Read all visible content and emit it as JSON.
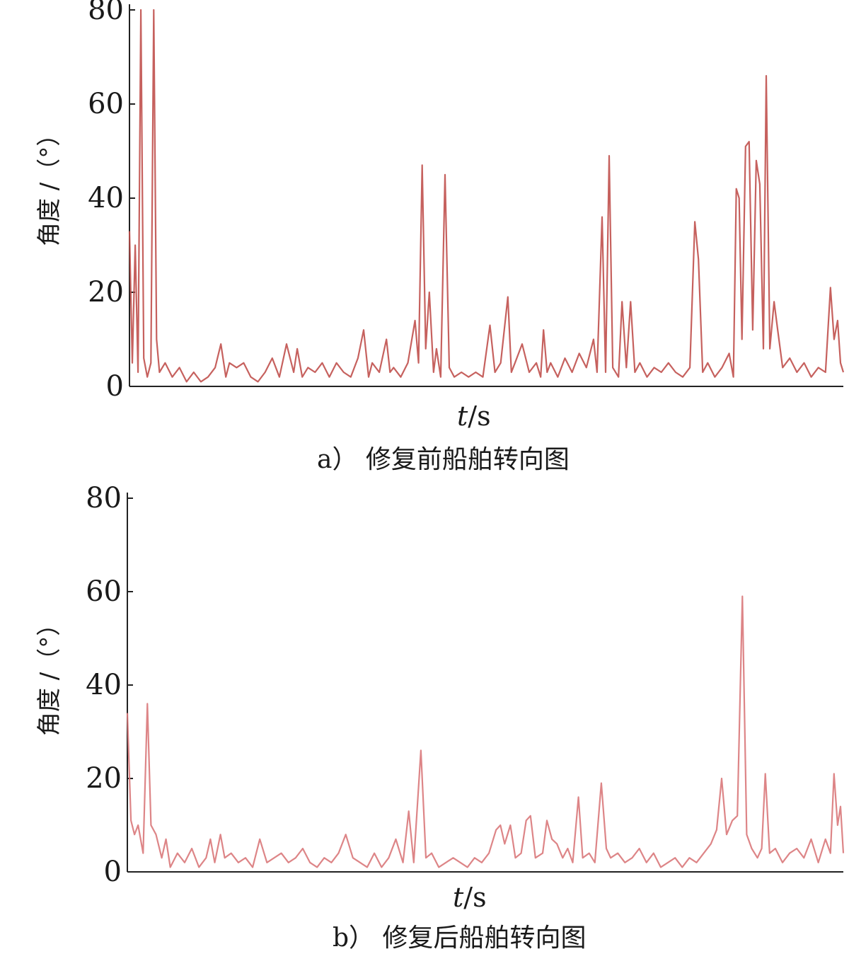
{
  "chart_data": [
    {
      "type": "line",
      "panel": "a",
      "caption_tag": "a）",
      "caption_text": "修复前船舶转向图",
      "ylabel": "角度 /（°）",
      "xlabel_var": "t",
      "xlabel_unit": "/s",
      "yticks": [
        "0",
        "20",
        "40",
        "60",
        "80"
      ],
      "ylim": [
        0,
        80
      ],
      "xlim": [
        0,
        100
      ],
      "grid": false,
      "color": "#c0504d",
      "series": [
        {
          "points": [
            [
              0,
              33
            ],
            [
              0.4,
              5
            ],
            [
              0.8,
              30
            ],
            [
              1.2,
              3
            ],
            [
              1.6,
              80
            ],
            [
              2,
              6
            ],
            [
              2.5,
              2
            ],
            [
              3,
              5
            ],
            [
              3.4,
              80
            ],
            [
              3.8,
              10
            ],
            [
              4.2,
              3
            ],
            [
              5,
              5
            ],
            [
              6,
              2
            ],
            [
              7,
              4
            ],
            [
              8,
              1
            ],
            [
              9,
              3
            ],
            [
              10,
              1
            ],
            [
              11,
              2
            ],
            [
              12,
              4
            ],
            [
              12.8,
              9
            ],
            [
              13.5,
              2
            ],
            [
              14,
              5
            ],
            [
              15,
              4
            ],
            [
              16,
              5
            ],
            [
              17,
              2
            ],
            [
              18,
              1
            ],
            [
              19,
              3
            ],
            [
              20,
              6
            ],
            [
              21,
              2
            ],
            [
              22,
              9
            ],
            [
              23,
              3
            ],
            [
              23.5,
              8
            ],
            [
              24.2,
              2
            ],
            [
              25,
              4
            ],
            [
              26,
              3
            ],
            [
              27,
              5
            ],
            [
              28,
              2
            ],
            [
              29,
              5
            ],
            [
              30,
              3
            ],
            [
              31,
              2
            ],
            [
              32,
              6
            ],
            [
              32.8,
              12
            ],
            [
              33.5,
              2
            ],
            [
              34,
              5
            ],
            [
              35,
              3
            ],
            [
              36,
              10
            ],
            [
              36.5,
              3
            ],
            [
              37,
              4
            ],
            [
              38,
              2
            ],
            [
              39,
              5
            ],
            [
              40,
              14
            ],
            [
              40.5,
              5
            ],
            [
              41,
              47
            ],
            [
              41.5,
              8
            ],
            [
              42,
              20
            ],
            [
              42.6,
              3
            ],
            [
              43,
              8
            ],
            [
              43.6,
              2
            ],
            [
              44.2,
              45
            ],
            [
              44.8,
              4
            ],
            [
              45.5,
              2
            ],
            [
              46.5,
              3
            ],
            [
              47.5,
              2
            ],
            [
              48.5,
              3
            ],
            [
              49.5,
              2
            ],
            [
              50.5,
              13
            ],
            [
              51.2,
              3
            ],
            [
              52,
              5
            ],
            [
              53,
              19
            ],
            [
              53.5,
              3
            ],
            [
              54,
              5
            ],
            [
              55,
              9
            ],
            [
              56,
              3
            ],
            [
              57,
              5
            ],
            [
              57.6,
              2
            ],
            [
              58,
              12
            ],
            [
              58.5,
              3
            ],
            [
              59,
              5
            ],
            [
              60,
              2
            ],
            [
              61,
              6
            ],
            [
              62,
              3
            ],
            [
              63,
              7
            ],
            [
              64,
              4
            ],
            [
              65,
              10
            ],
            [
              65.5,
              3
            ],
            [
              66.2,
              36
            ],
            [
              66.7,
              3
            ],
            [
              67.2,
              49
            ],
            [
              67.7,
              4
            ],
            [
              68.5,
              2
            ],
            [
              69,
              18
            ],
            [
              69.6,
              4
            ],
            [
              70.2,
              18
            ],
            [
              70.8,
              3
            ],
            [
              71.5,
              5
            ],
            [
              72.5,
              2
            ],
            [
              73.5,
              4
            ],
            [
              74.5,
              3
            ],
            [
              75.5,
              5
            ],
            [
              76.5,
              3
            ],
            [
              77.5,
              2
            ],
            [
              78.5,
              4
            ],
            [
              79.2,
              35
            ],
            [
              79.7,
              27
            ],
            [
              80.3,
              3
            ],
            [
              81,
              5
            ],
            [
              82,
              2
            ],
            [
              83,
              4
            ],
            [
              84,
              7
            ],
            [
              84.6,
              2
            ],
            [
              85,
              42
            ],
            [
              85.4,
              40
            ],
            [
              85.8,
              10
            ],
            [
              86.3,
              51
            ],
            [
              86.8,
              52
            ],
            [
              87.3,
              12
            ],
            [
              87.8,
              48
            ],
            [
              88.3,
              43
            ],
            [
              88.8,
              8
            ],
            [
              89.2,
              66
            ],
            [
              89.7,
              8
            ],
            [
              90.3,
              18
            ],
            [
              90.8,
              12
            ],
            [
              91.5,
              4
            ],
            [
              92.5,
              6
            ],
            [
              93.5,
              3
            ],
            [
              94.5,
              5
            ],
            [
              95.5,
              2
            ],
            [
              96.5,
              4
            ],
            [
              97.5,
              3
            ],
            [
              98.2,
              21
            ],
            [
              98.7,
              10
            ],
            [
              99.2,
              14
            ],
            [
              99.6,
              5
            ],
            [
              100,
              3
            ]
          ]
        }
      ]
    },
    {
      "type": "line",
      "panel": "b",
      "caption_tag": "b）",
      "caption_text": "修复后船舶转向图",
      "ylabel": "角度 /（°）",
      "xlabel_var": "t",
      "xlabel_unit": "/s",
      "yticks": [
        "0",
        "20",
        "40",
        "60",
        "80"
      ],
      "ylim": [
        0,
        80
      ],
      "xlim": [
        0,
        100
      ],
      "grid": false,
      "color": "#d9787a",
      "series": [
        {
          "points": [
            [
              0,
              34
            ],
            [
              0.5,
              11
            ],
            [
              1,
              8
            ],
            [
              1.5,
              10
            ],
            [
              2.2,
              4
            ],
            [
              2.8,
              36
            ],
            [
              3.3,
              10
            ],
            [
              4,
              8
            ],
            [
              4.8,
              3
            ],
            [
              5.4,
              7
            ],
            [
              6,
              1
            ],
            [
              7,
              4
            ],
            [
              8,
              2
            ],
            [
              9,
              5
            ],
            [
              10,
              1
            ],
            [
              11,
              3
            ],
            [
              11.6,
              7
            ],
            [
              12.2,
              2
            ],
            [
              13,
              8
            ],
            [
              13.6,
              3
            ],
            [
              14.5,
              4
            ],
            [
              15.5,
              2
            ],
            [
              16.5,
              3
            ],
            [
              17.5,
              1
            ],
            [
              18.5,
              7
            ],
            [
              19.5,
              2
            ],
            [
              20.5,
              3
            ],
            [
              21.5,
              4
            ],
            [
              22.5,
              2
            ],
            [
              23.5,
              3
            ],
            [
              24.5,
              5
            ],
            [
              25.5,
              2
            ],
            [
              26.5,
              1
            ],
            [
              27.5,
              3
            ],
            [
              28.5,
              2
            ],
            [
              29.5,
              4
            ],
            [
              30.5,
              8
            ],
            [
              31.5,
              3
            ],
            [
              32.5,
              2
            ],
            [
              33.5,
              1
            ],
            [
              34.5,
              4
            ],
            [
              35.5,
              1
            ],
            [
              36.5,
              3
            ],
            [
              37.5,
              7
            ],
            [
              38.5,
              2
            ],
            [
              39.3,
              13
            ],
            [
              40,
              2
            ],
            [
              41,
              26
            ],
            [
              41.7,
              3
            ],
            [
              42.5,
              4
            ],
            [
              43.5,
              1
            ],
            [
              44.5,
              2
            ],
            [
              45.5,
              3
            ],
            [
              46.5,
              2
            ],
            [
              47.5,
              1
            ],
            [
              48.5,
              3
            ],
            [
              49.5,
              2
            ],
            [
              50.5,
              4
            ],
            [
              51.5,
              9
            ],
            [
              52.1,
              10
            ],
            [
              52.7,
              6
            ],
            [
              53.5,
              10
            ],
            [
              54.2,
              3
            ],
            [
              55,
              4
            ],
            [
              55.7,
              11
            ],
            [
              56.3,
              12
            ],
            [
              57,
              3
            ],
            [
              58,
              4
            ],
            [
              58.6,
              11
            ],
            [
              59.3,
              7
            ],
            [
              60,
              6
            ],
            [
              60.8,
              3
            ],
            [
              61.5,
              5
            ],
            [
              62.2,
              2
            ],
            [
              63,
              16
            ],
            [
              63.6,
              3
            ],
            [
              64.5,
              4
            ],
            [
              65.3,
              2
            ],
            [
              66.2,
              19
            ],
            [
              66.9,
              5
            ],
            [
              67.5,
              3
            ],
            [
              68.5,
              4
            ],
            [
              69.5,
              2
            ],
            [
              70.5,
              3
            ],
            [
              71.5,
              5
            ],
            [
              72.5,
              2
            ],
            [
              73.5,
              4
            ],
            [
              74.5,
              1
            ],
            [
              75.5,
              2
            ],
            [
              76.5,
              3
            ],
            [
              77.5,
              1
            ],
            [
              78.5,
              3
            ],
            [
              79.5,
              2
            ],
            [
              80.5,
              4
            ],
            [
              81.5,
              6
            ],
            [
              82.3,
              9
            ],
            [
              83,
              20
            ],
            [
              83.7,
              8
            ],
            [
              84.5,
              11
            ],
            [
              85.2,
              12
            ],
            [
              85.9,
              59
            ],
            [
              86.5,
              8
            ],
            [
              87.2,
              5
            ],
            [
              88,
              3
            ],
            [
              88.6,
              5
            ],
            [
              89.1,
              21
            ],
            [
              89.7,
              4
            ],
            [
              90.5,
              5
            ],
            [
              91.5,
              2
            ],
            [
              92.5,
              4
            ],
            [
              93.5,
              5
            ],
            [
              94.5,
              3
            ],
            [
              95.5,
              7
            ],
            [
              96.5,
              2
            ],
            [
              97.5,
              7
            ],
            [
              98.2,
              4
            ],
            [
              98.7,
              21
            ],
            [
              99.2,
              10
            ],
            [
              99.6,
              14
            ],
            [
              100,
              4
            ]
          ]
        }
      ]
    }
  ]
}
